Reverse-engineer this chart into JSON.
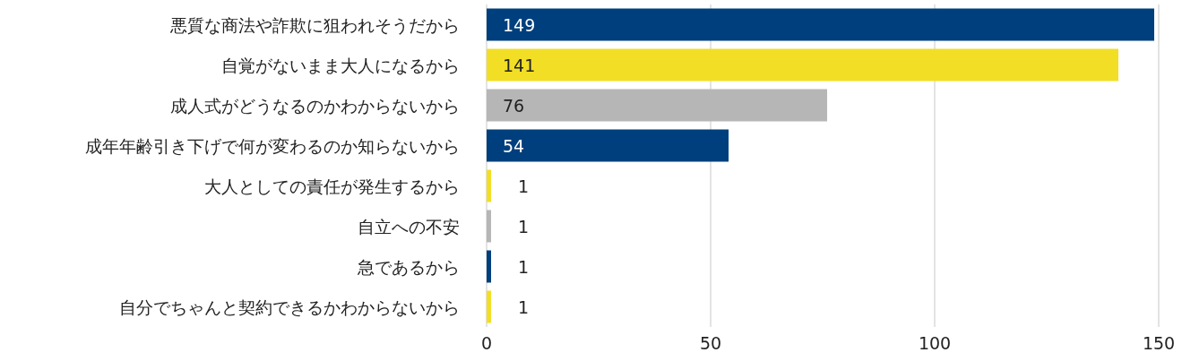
{
  "chart_data": {
    "type": "bar",
    "orientation": "horizontal",
    "categories": [
      "悪質な商法や詐欺に狙われそうだから",
      "自覚がないまま大人になるから",
      "成人式がどうなるのかわからないから",
      "成年年齢引き下げで何が変わるのか知らないから",
      "大人としての責任が発生するから",
      "自立への不安",
      "急であるから",
      "自分でちゃんと契約できるかわからないから"
    ],
    "values": [
      149,
      141,
      76,
      54,
      1,
      1,
      1,
      1
    ],
    "colors": [
      "#003f7d",
      "#f2de25",
      "#b5b6b5",
      "#003f7d",
      "#f2de25",
      "#b5b6b5",
      "#003f7d",
      "#f2de25"
    ],
    "xlim": [
      0,
      150
    ],
    "xticks": [
      0,
      50,
      100,
      150
    ],
    "grid": "x",
    "data_labels": true
  }
}
